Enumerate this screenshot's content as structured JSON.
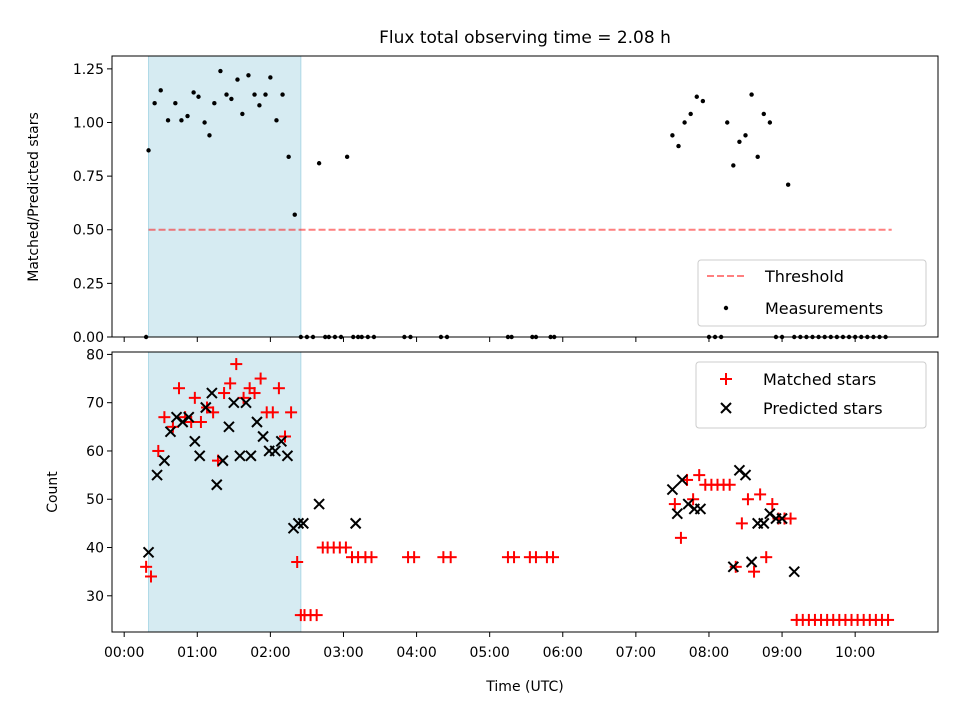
{
  "chart_data": [
    {
      "type": "scatter",
      "title": "Flux total observing time = 2.08 h",
      "xlabel": "",
      "ylabel": "Matched/Predicted stars",
      "xlim": [
        "23:50",
        "11:08"
      ],
      "ylim": [
        0,
        1.31
      ],
      "yticks": [
        0.0,
        0.25,
        0.5,
        0.75,
        1.0,
        1.25
      ],
      "ytick_labels": [
        "0.00",
        "0.25",
        "0.50",
        "0.75",
        "1.00",
        "1.25"
      ],
      "legend_position": "lower-right",
      "highlight_band": {
        "start": "00:20",
        "end": "02:25",
        "color": "#add8e6"
      },
      "series": [
        {
          "name": "Threshold",
          "kind": "dashed-line",
          "color": "#ff0000",
          "opacity": 0.5,
          "x": [
            "00:20",
            "10:30"
          ],
          "y": [
            0.5,
            0.5
          ]
        },
        {
          "name": "Measurements",
          "kind": "dot",
          "color": "#000000",
          "x": [
            "00:18",
            "00:20",
            "00:25",
            "00:30",
            "00:36",
            "00:42",
            "00:47",
            "00:52",
            "00:57",
            "01:01",
            "01:06",
            "01:10",
            "01:14",
            "01:19",
            "01:24",
            "01:28",
            "01:33",
            "01:37",
            "01:42",
            "01:47",
            "01:51",
            "01:56",
            "02:00",
            "02:05",
            "02:10",
            "02:15",
            "02:20",
            "02:25",
            "02:30",
            "02:35",
            "02:40",
            "02:45",
            "02:48",
            "02:53",
            "02:58",
            "03:03",
            "03:08",
            "03:12",
            "03:15",
            "03:20",
            "03:25",
            "03:50",
            "03:55",
            "04:20",
            "04:25",
            "05:15",
            "05:18",
            "05:35",
            "05:38",
            "05:50",
            "05:53",
            "07:30",
            "07:35",
            "07:40",
            "07:45",
            "07:50",
            "07:55",
            "08:00",
            "08:05",
            "08:10",
            "08:15",
            "08:20",
            "08:25",
            "08:30",
            "08:35",
            "08:40",
            "08:45",
            "08:50",
            "08:55",
            "09:00",
            "09:05",
            "09:10",
            "09:15",
            "09:20",
            "09:25",
            "09:30",
            "09:35",
            "09:40",
            "09:45",
            "09:50",
            "09:55",
            "10:00",
            "10:05",
            "10:10",
            "10:15",
            "10:20",
            "10:25"
          ],
          "y": [
            0.0,
            0.87,
            1.09,
            1.15,
            1.01,
            1.09,
            1.01,
            1.03,
            1.14,
            1.12,
            1.0,
            0.94,
            1.09,
            1.24,
            1.13,
            1.11,
            1.2,
            1.04,
            1.22,
            1.13,
            1.08,
            1.13,
            1.21,
            1.01,
            1.13,
            0.84,
            0.57,
            0.0,
            0.0,
            0.0,
            0.81,
            0.0,
            0.0,
            0.0,
            0.0,
            0.84,
            0.0,
            0.0,
            0.0,
            0.0,
            0.0,
            0.0,
            0.0,
            0.0,
            0.0,
            0.0,
            0.0,
            0.0,
            0.0,
            0.0,
            0.0,
            0.94,
            0.89,
            1.0,
            1.04,
            1.12,
            1.1,
            0.0,
            0.0,
            0.0,
            1.0,
            0.8,
            0.91,
            0.94,
            1.13,
            0.84,
            1.04,
            1.0,
            0.0,
            0.0,
            0.71,
            0.0,
            0.0,
            0.0,
            0.0,
            0.0,
            0.0,
            0.0,
            0.0,
            0.0,
            0.0,
            0.0,
            0.0,
            0.0,
            0.0,
            0.0,
            0.0
          ]
        }
      ]
    },
    {
      "type": "scatter",
      "title": "",
      "xlabel": "Time (UTC)",
      "ylabel": "Count",
      "xlim": [
        "23:50",
        "11:08"
      ],
      "ylim": [
        22.5,
        80.5
      ],
      "yticks": [
        30,
        40,
        50,
        60,
        70,
        80
      ],
      "ytick_labels": [
        "30",
        "40",
        "50",
        "60",
        "70",
        "80"
      ],
      "xticks": [
        "00:00",
        "01:00",
        "02:00",
        "03:00",
        "04:00",
        "05:00",
        "06:00",
        "07:00",
        "08:00",
        "09:00",
        "10:00"
      ],
      "xtick_labels": [
        "00:00",
        "01:00",
        "02:00",
        "03:00",
        "04:00",
        "05:00",
        "06:00",
        "07:00",
        "08:00",
        "09:00",
        "10:00"
      ],
      "legend_position": "upper-right",
      "highlight_band": {
        "start": "00:20",
        "end": "02:25",
        "color": "#add8e6"
      },
      "series": [
        {
          "name": "Matched stars",
          "kind": "plus",
          "color": "#ff0000",
          "x": [
            "00:18",
            "00:22",
            "00:28",
            "00:33",
            "00:40",
            "00:45",
            "00:50",
            "00:55",
            "00:58",
            "01:03",
            "01:08",
            "01:13",
            "01:17",
            "01:22",
            "01:27",
            "01:32",
            "01:38",
            "01:43",
            "01:47",
            "01:52",
            "01:57",
            "02:02",
            "02:07",
            "02:12",
            "02:17",
            "02:22",
            "02:25",
            "02:28",
            "02:33",
            "02:38",
            "02:43",
            "02:47",
            "02:52",
            "02:57",
            "03:02",
            "03:07",
            "03:12",
            "03:18",
            "03:23",
            "03:53",
            "03:58",
            "04:22",
            "04:28",
            "05:15",
            "05:20",
            "05:33",
            "05:38",
            "05:47",
            "05:52",
            "07:32",
            "07:37",
            "07:42",
            "07:47",
            "07:52",
            "07:57",
            "08:02",
            "08:07",
            "08:12",
            "08:17",
            "08:22",
            "08:27",
            "08:32",
            "08:37",
            "08:42",
            "08:47",
            "08:52",
            "08:57",
            "09:02",
            "09:07",
            "09:12",
            "09:17",
            "09:22",
            "09:27",
            "09:32",
            "09:37",
            "09:42",
            "09:47",
            "09:52",
            "09:57",
            "10:02",
            "10:07",
            "10:12",
            "10:17",
            "10:22",
            "10:27"
          ],
          "y": [
            36,
            34,
            60,
            67,
            65,
            73,
            67,
            66,
            71,
            66,
            69,
            68,
            58,
            72,
            74,
            78,
            71,
            73,
            72,
            75,
            68,
            68,
            73,
            63,
            68,
            37,
            26,
            26,
            26,
            26,
            40,
            40,
            40,
            40,
            40,
            38,
            38,
            38,
            38,
            38,
            38,
            38,
            38,
            38,
            38,
            38,
            38,
            38,
            38,
            49,
            42,
            54,
            50,
            55,
            53,
            53,
            53,
            53,
            53,
            36,
            45,
            50,
            35,
            51,
            38,
            49,
            46,
            46,
            46,
            25,
            25,
            25,
            25,
            25,
            25,
            25,
            25,
            25,
            25,
            25,
            25,
            25,
            25,
            25,
            25
          ]
        },
        {
          "name": "Predicted stars",
          "kind": "x",
          "color": "#000000",
          "x": [
            "00:20",
            "00:27",
            "00:33",
            "00:38",
            "00:43",
            "00:48",
            "00:53",
            "00:58",
            "01:02",
            "01:07",
            "01:12",
            "01:16",
            "01:21",
            "01:26",
            "01:30",
            "01:35",
            "01:40",
            "01:44",
            "01:49",
            "01:54",
            "01:59",
            "02:04",
            "02:09",
            "02:14",
            "02:19",
            "02:23",
            "02:27",
            "02:40",
            "03:10",
            "07:30",
            "07:34",
            "07:38",
            "07:43",
            "07:48",
            "07:53",
            "08:20",
            "08:25",
            "08:30",
            "08:35",
            "08:40",
            "08:45",
            "08:50",
            "08:55",
            "09:00",
            "09:10"
          ],
          "y": [
            39,
            55,
            58,
            64,
            67,
            66,
            67,
            62,
            59,
            69,
            72,
            53,
            58,
            65,
            70,
            59,
            70,
            59,
            66,
            63,
            60,
            60,
            62,
            59,
            44,
            45,
            45,
            49,
            45,
            52,
            47,
            54,
            49,
            48,
            48,
            36,
            56,
            55,
            37,
            45,
            45,
            47,
            46,
            46,
            35
          ]
        }
      ]
    }
  ]
}
